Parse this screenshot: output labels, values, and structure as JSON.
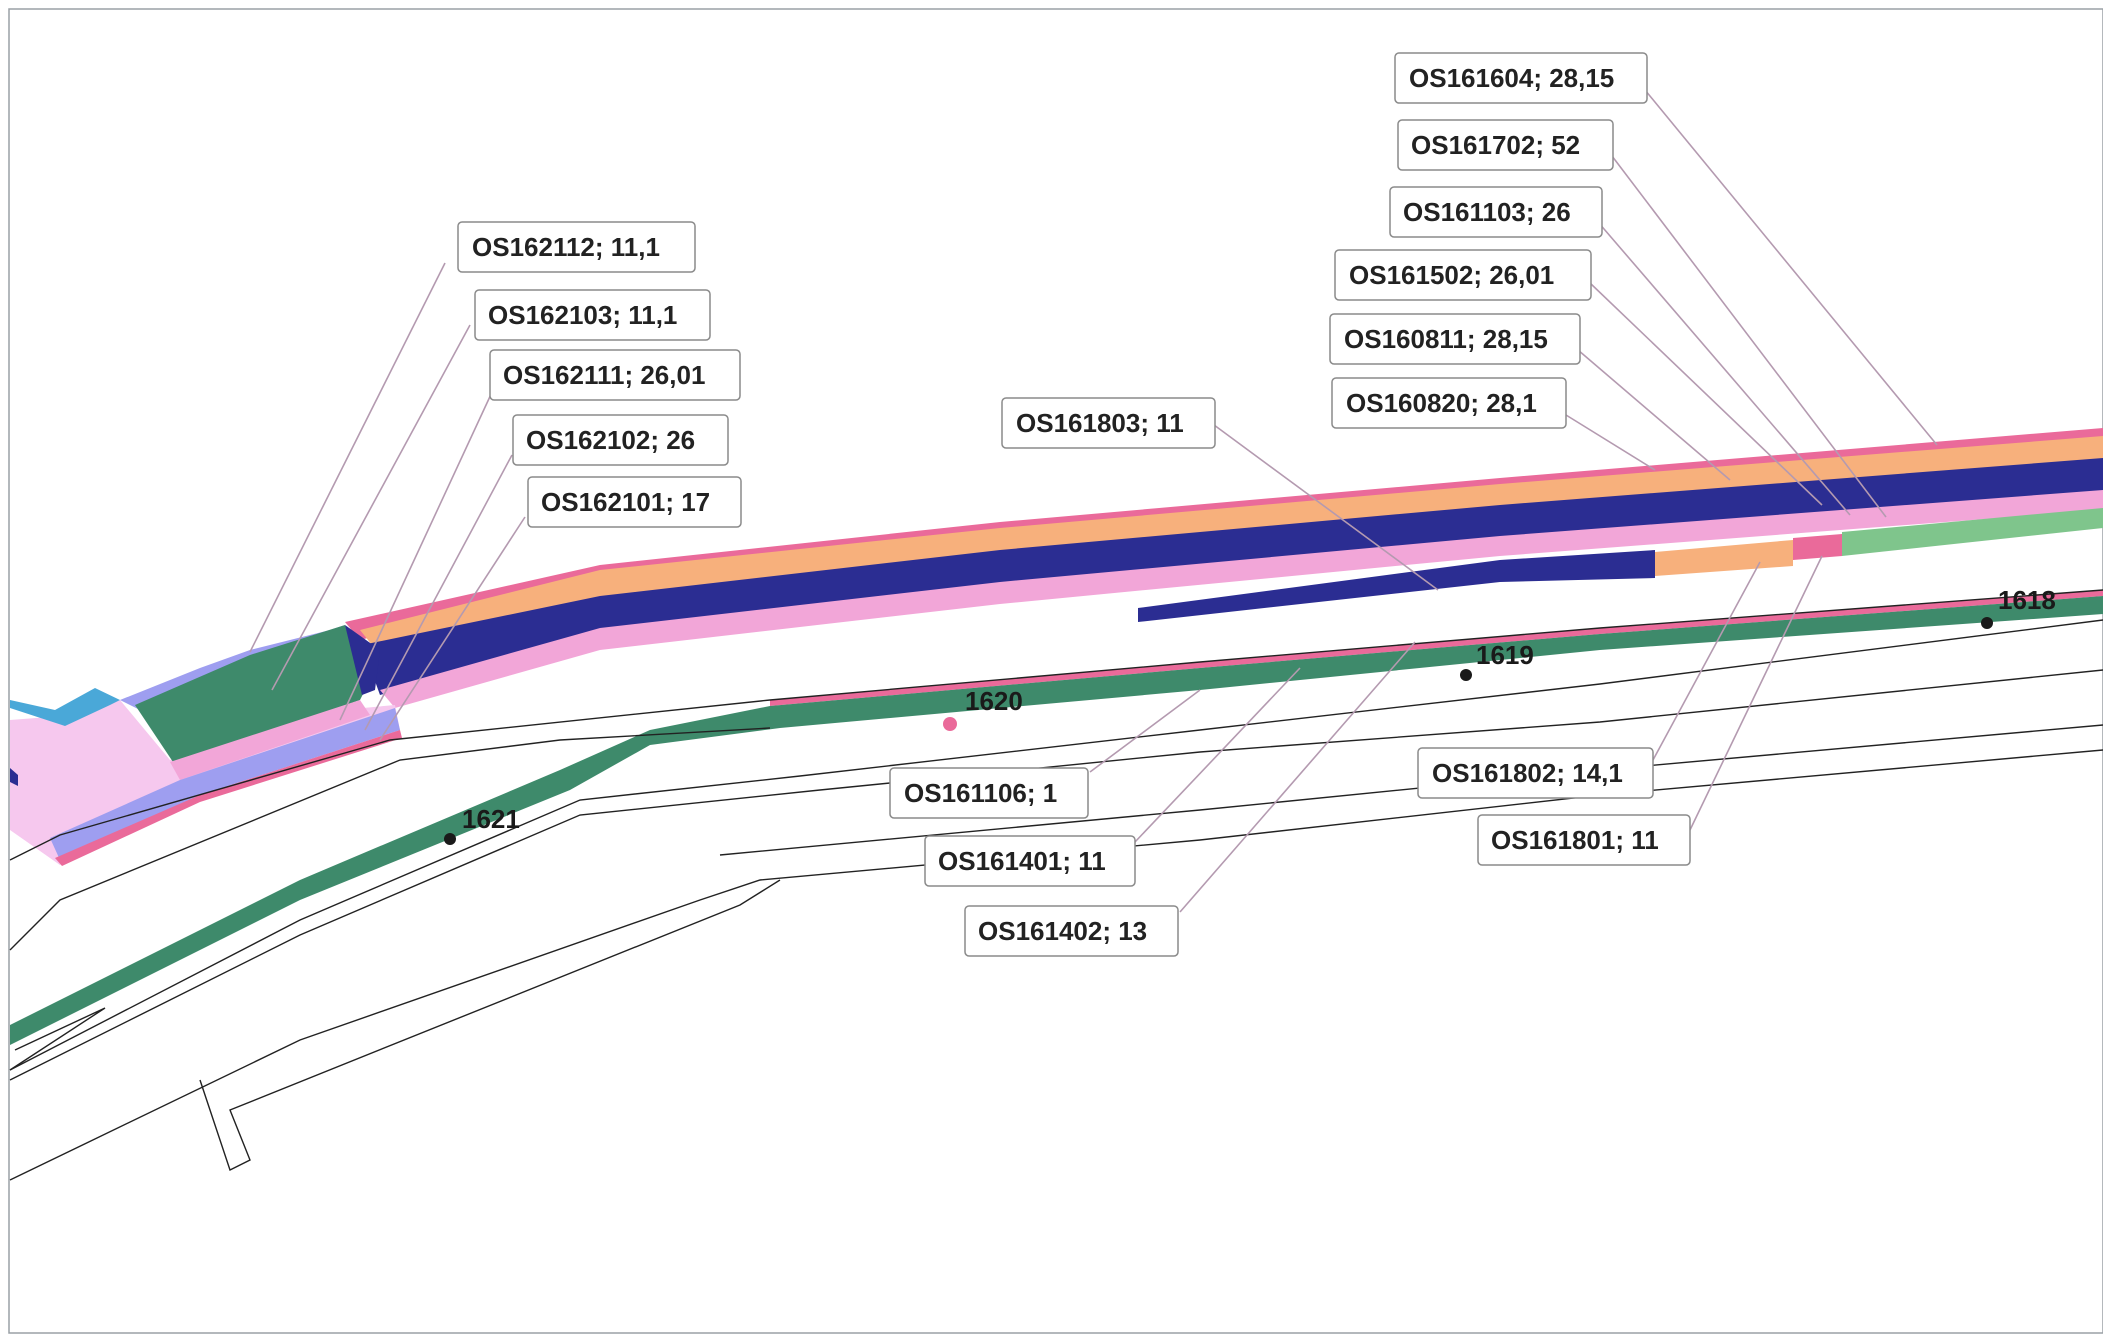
{
  "map": {
    "colors": {
      "salmon": "#f7b07c",
      "navy": "#2b2d92",
      "pink_border": "#ea6a9a",
      "light_pink": "#f2a6d8",
      "very_light_pink": "#f6c8ee",
      "teal_green": "#3e8a6b",
      "green": "#7fc58c",
      "lavender": "#9e9ef0",
      "cyan": "#4aa8d8"
    },
    "labels": [
      {
        "id": "os162112",
        "text": "OS162112; 11,1"
      },
      {
        "id": "os162103",
        "text": "OS162103; 11,1"
      },
      {
        "id": "os162111",
        "text": "OS162111; 26,01"
      },
      {
        "id": "os162102",
        "text": "OS162102; 26"
      },
      {
        "id": "os162101",
        "text": "OS162101; 17"
      },
      {
        "id": "os161803",
        "text": "OS161803; 11"
      },
      {
        "id": "os161604",
        "text": "OS161604; 28,15"
      },
      {
        "id": "os161702",
        "text": "OS161702; 52"
      },
      {
        "id": "os161103",
        "text": "OS161103; 26"
      },
      {
        "id": "os161502",
        "text": "OS161502; 26,01"
      },
      {
        "id": "os160811",
        "text": "OS160811; 28,15"
      },
      {
        "id": "os160820",
        "text": "OS160820; 28,1"
      },
      {
        "id": "os161106",
        "text": "OS161106; 1"
      },
      {
        "id": "os161401",
        "text": "OS161401; 11"
      },
      {
        "id": "os161402",
        "text": "OS161402; 13"
      },
      {
        "id": "os161802",
        "text": "OS161802; 14,1"
      },
      {
        "id": "os161801",
        "text": "OS161801; 11"
      }
    ],
    "km_markers": [
      {
        "id": "km1618",
        "text": "1618"
      },
      {
        "id": "km1619",
        "text": "1619"
      },
      {
        "id": "km1620",
        "text": "1620"
      },
      {
        "id": "km1621",
        "text": "1621"
      }
    ]
  }
}
